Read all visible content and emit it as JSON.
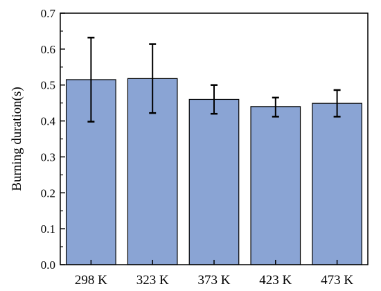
{
  "chart_data": {
    "type": "bar",
    "title": "",
    "xlabel": "",
    "ylabel": "Burning duration(s)",
    "categories": [
      "298 K",
      "323 K",
      "373 K",
      "423 K",
      "473 K"
    ],
    "values": [
      0.515,
      0.518,
      0.46,
      0.44,
      0.449
    ],
    "error_low": [
      0.398,
      0.422,
      0.42,
      0.412,
      0.412
    ],
    "error_high": [
      0.632,
      0.614,
      0.5,
      0.465,
      0.486
    ],
    "ylim": [
      0,
      0.7
    ],
    "yticks": [
      "0.0",
      "0.1",
      "0.2",
      "0.3",
      "0.4",
      "0.5",
      "0.6",
      "0.7"
    ],
    "grid": false,
    "bar_color": "#8aa4d4",
    "edge_color": "#000000"
  }
}
